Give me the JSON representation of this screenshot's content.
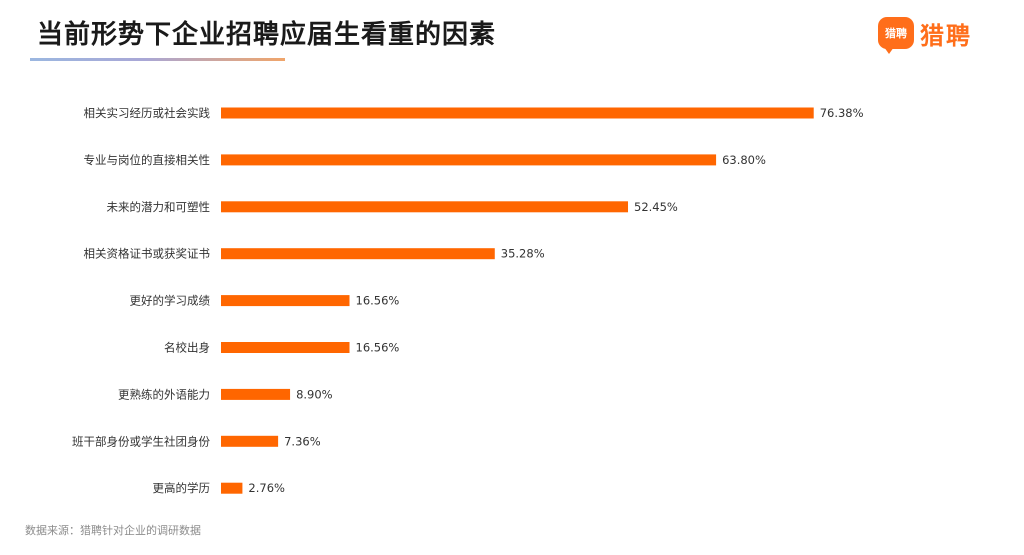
{
  "header": {
    "title": "当前形势下企业招聘应届生看重的因素"
  },
  "logo": {
    "icon_text": "猎聘",
    "text": "猎聘",
    "brand_color": "#ff6e1a"
  },
  "chart_data": {
    "type": "bar",
    "orientation": "horizontal",
    "title": "当前形势下企业招聘应届生看重的因素",
    "xlabel": "",
    "ylabel": "",
    "categories": [
      "相关实习经历或社会实践",
      "专业与岗位的直接相关性",
      "未来的潜力和可塑性",
      "相关资格证书或获奖证书",
      "更好的学习成绩",
      "名校出身",
      "更熟练的外语能力",
      "班干部身份或学生社团身份",
      "更高的学历"
    ],
    "values": [
      76.38,
      63.8,
      52.45,
      35.28,
      16.56,
      16.56,
      8.9,
      7.36,
      2.76
    ],
    "value_labels": [
      "76.38%",
      "63.80%",
      "52.45%",
      "35.28%",
      "16.56%",
      "16.56%",
      "8.90%",
      "7.36%",
      "2.76%"
    ],
    "unit": "%",
    "bar_color": "#ff6600",
    "grid": false,
    "legend": "none",
    "xlim": [
      0,
      100
    ]
  },
  "footer": {
    "source": "数据来源：猎聘针对企业的调研数据"
  }
}
